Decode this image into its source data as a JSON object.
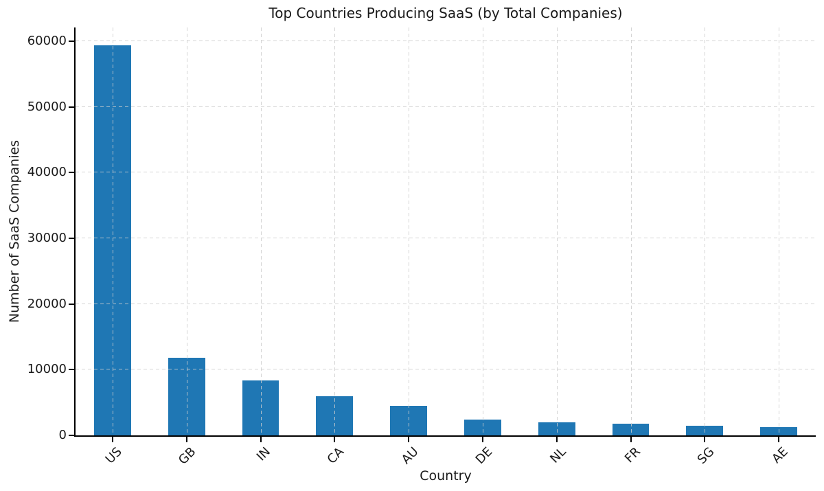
{
  "chart_data": {
    "type": "bar",
    "title": "Top Countries Producing SaaS (by Total Companies)",
    "xlabel": "Country",
    "ylabel": "Number of SaaS Companies",
    "categories": [
      "US",
      "GB",
      "IN",
      "CA",
      "AU",
      "DE",
      "NL",
      "FR",
      "SG",
      "AE"
    ],
    "values": [
      59400,
      11800,
      8400,
      6000,
      4500,
      2400,
      2000,
      1800,
      1450,
      1250
    ],
    "yticks": [
      0,
      10000,
      20000,
      30000,
      40000,
      50000,
      60000
    ],
    "ytick_labels": [
      "0",
      "10000",
      "20000",
      "30000",
      "40000",
      "50000",
      "60000"
    ],
    "ylim": [
      0,
      62100
    ],
    "bar_width_fraction": 0.5,
    "grid": "both-dashed-above-bars",
    "legend_position": "none"
  },
  "colors": {
    "bar": "#1f77b4",
    "grid": "#cdcdcd",
    "spine": "#000000",
    "text": "#1a1a1a",
    "background": "#ffffff"
  }
}
